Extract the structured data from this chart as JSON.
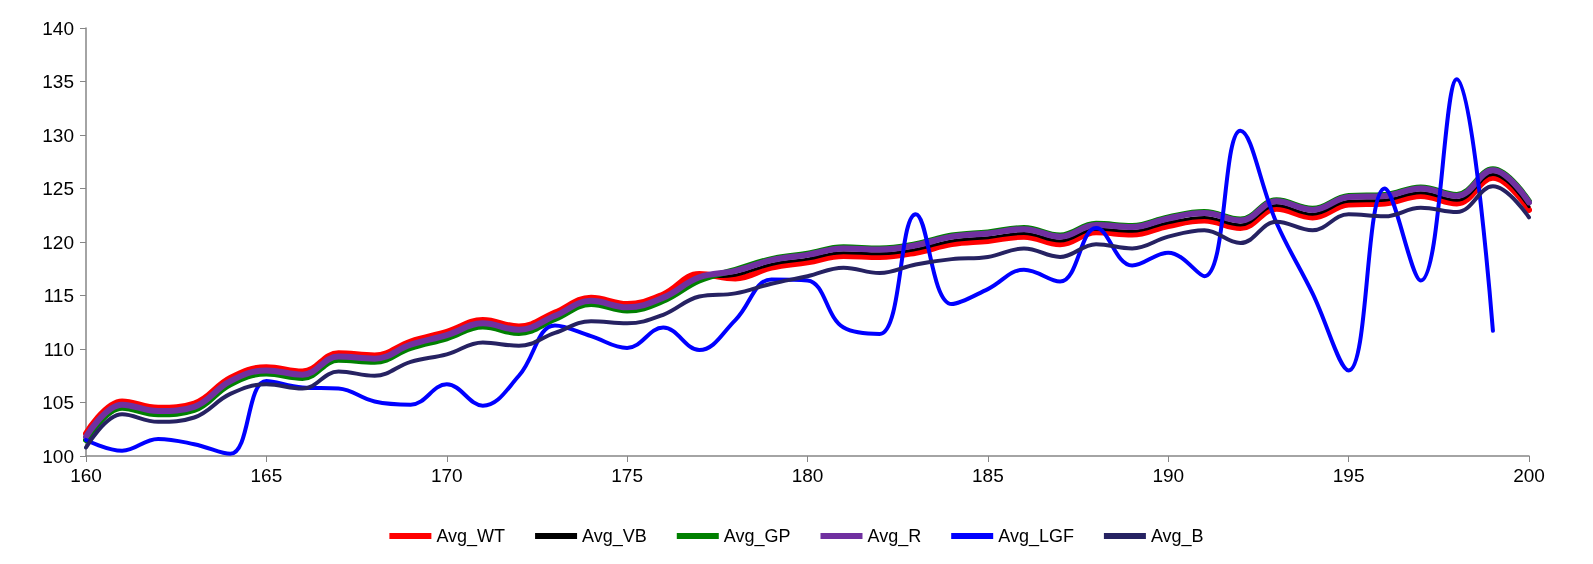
{
  "chart_data": {
    "type": "line",
    "x": [
      160,
      161,
      162,
      163,
      164,
      165,
      166,
      167,
      168,
      169,
      170,
      171,
      172,
      173,
      174,
      175,
      176,
      177,
      178,
      179,
      180,
      181,
      182,
      183,
      184,
      185,
      186,
      187,
      188,
      189,
      190,
      191,
      192,
      193,
      194,
      195,
      196,
      197,
      198,
      199,
      200
    ],
    "series": [
      {
        "name": "Avg_WT",
        "color": "#ff0000",
        "values": [
          102.1,
          105.1,
          104.5,
          104.9,
          107.3,
          108.3,
          107.9,
          109.6,
          109.4,
          110.7,
          111.6,
          112.7,
          112.1,
          113.4,
          114.8,
          114.2,
          115.1,
          117.0,
          116.6,
          117.6,
          118.1,
          118.7,
          118.6,
          119.0,
          119.8,
          120.1,
          120.5,
          119.8,
          120.9,
          120.7,
          121.5,
          122.0,
          121.3,
          123.1,
          122.3,
          123.5,
          123.6,
          124.3,
          123.6,
          126.0,
          123.0
        ]
      },
      {
        "name": "Avg_VB",
        "color": "#000000",
        "values": [
          101.7,
          104.7,
          104.1,
          104.5,
          106.9,
          107.9,
          107.5,
          109.2,
          109.0,
          110.3,
          111.2,
          112.3,
          111.7,
          113.0,
          114.4,
          113.8,
          114.7,
          116.6,
          116.9,
          117.9,
          118.4,
          119.0,
          118.9,
          119.3,
          120.1,
          120.4,
          120.8,
          120.1,
          121.2,
          121.0,
          121.8,
          122.3,
          121.6,
          123.4,
          122.6,
          123.8,
          123.9,
          124.6,
          123.9,
          126.3,
          123.3
        ]
      },
      {
        "name": "Avg_GP",
        "color": "#008000",
        "values": [
          101.5,
          104.5,
          103.9,
          104.3,
          106.7,
          107.7,
          107.3,
          109.0,
          108.8,
          110.1,
          111.0,
          112.1,
          111.5,
          112.8,
          114.2,
          113.6,
          114.5,
          116.4,
          117.4,
          118.4,
          118.9,
          119.5,
          119.4,
          119.8,
          120.6,
          120.9,
          121.3,
          120.6,
          121.7,
          121.5,
          122.3,
          122.8,
          122.1,
          123.9,
          123.1,
          124.3,
          124.4,
          125.1,
          124.4,
          126.8,
          123.8
        ]
      },
      {
        "name": "Avg_R",
        "color": "#7030a0",
        "values": [
          101.8,
          104.8,
          104.2,
          104.6,
          107.0,
          108.0,
          107.6,
          109.3,
          109.1,
          110.4,
          111.3,
          112.4,
          111.8,
          113.1,
          114.5,
          113.9,
          114.8,
          116.7,
          117.3,
          118.3,
          118.8,
          119.4,
          119.3,
          119.7,
          120.5,
          120.8,
          121.2,
          120.5,
          121.6,
          121.4,
          122.2,
          122.7,
          122.0,
          123.8,
          123.0,
          124.2,
          124.3,
          125.0,
          124.3,
          126.7,
          123.7
        ]
      },
      {
        "name": "Avg_LGF",
        "color": "#0000ff",
        "values": [
          101.5,
          100.5,
          101.6,
          101.1,
          100.2,
          107.0,
          106.4,
          106.3,
          105.1,
          104.8,
          106.7,
          104.7,
          107.5,
          112.2,
          111.2,
          110.1,
          112.0,
          109.9,
          112.7,
          116.5,
          116.4,
          112.0,
          111.4,
          122.6,
          114.2,
          115.6,
          117.4,
          116.3,
          121.3,
          117.8,
          119.0,
          116.8,
          130.4,
          121.8,
          115.2,
          108.0,
          125.0,
          116.4,
          135.2,
          111.7,
          null
        ]
      },
      {
        "name": "Avg_B",
        "color": "#262262",
        "values": [
          100.8,
          103.9,
          103.2,
          103.6,
          105.8,
          106.7,
          106.3,
          107.9,
          107.5,
          108.8,
          109.5,
          110.6,
          110.3,
          111.5,
          112.6,
          112.4,
          113.2,
          114.9,
          115.2,
          116.1,
          116.8,
          117.6,
          117.1,
          117.9,
          118.4,
          118.6,
          119.4,
          118.6,
          119.8,
          119.4,
          120.5,
          121.1,
          119.9,
          121.9,
          121.1,
          122.6,
          122.4,
          123.2,
          122.8,
          125.2,
          122.3
        ]
      }
    ],
    "xlim": [
      160,
      200
    ],
    "xticks": [
      160,
      165,
      170,
      175,
      180,
      185,
      190,
      195,
      200
    ],
    "ylim": [
      100,
      140
    ],
    "yticks": [
      100,
      105,
      110,
      115,
      120,
      125,
      130,
      135,
      140
    ],
    "grid": false,
    "legend": "bottom",
    "marker": "none",
    "line_style": "solid"
  }
}
